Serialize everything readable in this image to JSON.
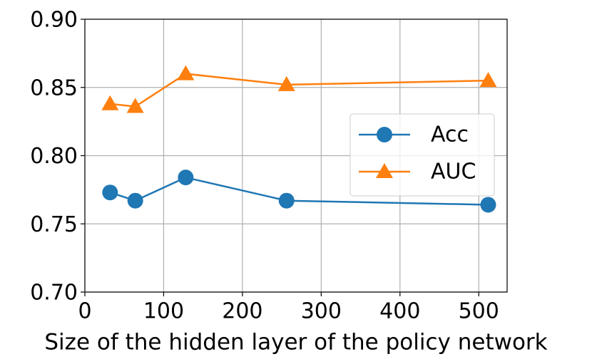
{
  "chart_data": {
    "type": "line",
    "x_label": "Size of the hidden layer of the policy network",
    "x": [
      32,
      64,
      128,
      256,
      512
    ],
    "series": [
      {
        "name": "Acc",
        "color": "#1f77b4",
        "marker": "circle",
        "values": [
          0.773,
          0.767,
          0.784,
          0.767,
          0.764
        ]
      },
      {
        "name": "AUC",
        "color": "#ff7f0e",
        "marker": "triangle",
        "values": [
          0.838,
          0.836,
          0.86,
          0.852,
          0.855
        ]
      }
    ],
    "xlim": [
      0,
      536
    ],
    "xticks": [
      0,
      100,
      200,
      300,
      400,
      500
    ],
    "ylim": [
      0.7,
      0.9
    ],
    "yticks": [
      {
        "value": 0.7,
        "label": "0.70"
      },
      0.75,
      {
        "value": 0.8,
        "label": "0.80"
      },
      0.85,
      {
        "value": 0.9,
        "label": "0.90"
      }
    ],
    "grid": true,
    "legend": "center right"
  }
}
